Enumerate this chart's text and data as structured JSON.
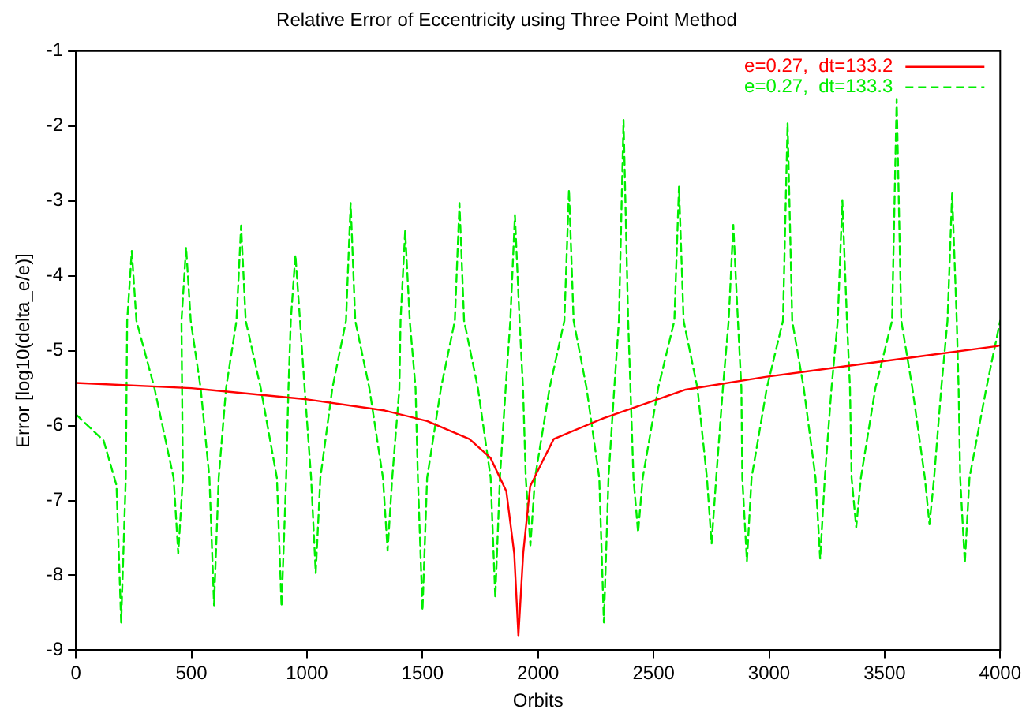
{
  "chart_data": {
    "type": "line",
    "title": "Relative Error of Eccentricity using Three Point Method",
    "xlabel": "Orbits",
    "ylabel": "Error [log10(delta_e/e)]",
    "xlim": [
      0,
      4000
    ],
    "xticks": [
      0,
      500,
      1000,
      1500,
      2000,
      2500,
      3000,
      3500,
      4000
    ],
    "ylim": [
      -9,
      -1
    ],
    "yticks": [
      -9,
      -8,
      -7,
      -6,
      -5,
      -4,
      -3,
      -2,
      -1
    ],
    "grid": false,
    "legend": "top right",
    "marker": "none",
    "series": [
      {
        "name": "e=0.27,  dt=133.2",
        "color": "#ff0000",
        "line_style": "solid",
        "x": [
          0,
          500,
          1000,
          1337,
          1520,
          1703,
          1794,
          1863,
          1897,
          1915,
          1936,
          1966,
          2022,
          2068,
          2285,
          2639,
          2984,
          3326,
          3668,
          3986,
          4000
        ],
        "values": [
          -5.43,
          -5.5,
          -5.65,
          -5.8,
          -5.94,
          -6.18,
          -6.43,
          -6.88,
          -7.71,
          -8.81,
          -7.7,
          -6.81,
          -6.46,
          -6.18,
          -5.9,
          -5.52,
          -5.35,
          -5.21,
          -5.07,
          -4.94,
          -4.93
        ]
      },
      {
        "name": "e=0.27,  dt=133.3",
        "color": "#00ee00",
        "line_style": "dashed",
        "x": [
          0,
          120,
          176,
          196,
          216,
          222,
          242,
          262,
          340,
          423,
          443,
          463,
          457,
          477,
          497,
          540,
          578,
          598,
          618,
          650,
          695,
          715,
          735,
          800,
          870,
          890,
          910,
          920,
          930,
          950,
          970,
          990,
          1018,
          1038,
          1058,
          1110,
          1169,
          1189,
          1209,
          1270,
          1329,
          1349,
          1369,
          1400,
          1405,
          1425,
          1445,
          1470,
          1480,
          1500,
          1520,
          1580,
          1640,
          1660,
          1680,
          1740,
          1795,
          1815,
          1835,
          1860,
          1880,
          1900,
          1920,
          1935,
          1947,
          1967,
          1987,
          2050,
          2114,
          2134,
          2154,
          2210,
          2265,
          2285,
          2305,
          2330,
          2350,
          2370,
          2390,
          2400,
          2413,
          2433,
          2453,
          2520,
          2590,
          2610,
          2630,
          2690,
          2731,
          2751,
          2771,
          2800,
          2825,
          2845,
          2865,
          2880,
          2884,
          2904,
          2924,
          2990,
          3060,
          3080,
          3100,
          3150,
          3201,
          3221,
          3241,
          3270,
          3297,
          3317,
          3337,
          3350,
          3357,
          3377,
          3397,
          3460,
          3532,
          3552,
          3572,
          3620,
          3674,
          3694,
          3714,
          3745,
          3772,
          3792,
          3812,
          3820,
          3827,
          3847,
          3867,
          3940,
          4000
        ],
        "values": [
          -5.85,
          -6.2,
          -6.8,
          -8.63,
          -6.7,
          -4.6,
          -3.67,
          -4.6,
          -5.5,
          -6.7,
          -7.71,
          -6.7,
          -4.6,
          -3.62,
          -4.6,
          -5.5,
          -6.7,
          -8.4,
          -6.7,
          -5.5,
          -4.6,
          -3.33,
          -4.6,
          -5.5,
          -6.7,
          -8.42,
          -6.7,
          -5.5,
          -4.6,
          -3.72,
          -4.6,
          -5.5,
          -6.7,
          -7.97,
          -6.7,
          -5.5,
          -4.6,
          -3.03,
          -4.6,
          -5.5,
          -6.7,
          -7.67,
          -6.7,
          -5.5,
          -4.6,
          -3.4,
          -4.6,
          -5.5,
          -6.7,
          -8.47,
          -6.7,
          -5.5,
          -4.6,
          -3.03,
          -4.6,
          -5.5,
          -6.7,
          -8.3,
          -6.7,
          -5.5,
          -4.6,
          -3.19,
          -4.6,
          -5.5,
          -6.7,
          -7.6,
          -6.7,
          -5.5,
          -4.6,
          -2.85,
          -4.6,
          -5.5,
          -6.7,
          -8.63,
          -6.7,
          -5.5,
          -4.6,
          -1.92,
          -4.6,
          -5.5,
          -6.7,
          -7.43,
          -6.7,
          -5.5,
          -4.6,
          -2.81,
          -4.6,
          -5.5,
          -6.7,
          -7.58,
          -6.7,
          -5.5,
          -4.6,
          -3.32,
          -4.6,
          -5.5,
          -6.7,
          -7.81,
          -6.7,
          -5.5,
          -4.6,
          -1.96,
          -4.6,
          -5.5,
          -6.7,
          -7.78,
          -6.7,
          -5.5,
          -4.6,
          -2.99,
          -4.6,
          -5.5,
          -6.7,
          -7.36,
          -6.7,
          -5.5,
          -4.6,
          -1.64,
          -4.6,
          -5.5,
          -6.7,
          -7.32,
          -6.7,
          -5.5,
          -4.6,
          -2.9,
          -4.6,
          -5.5,
          -6.7,
          -7.84,
          -6.7,
          -5.5,
          -4.6
        ]
      }
    ]
  }
}
